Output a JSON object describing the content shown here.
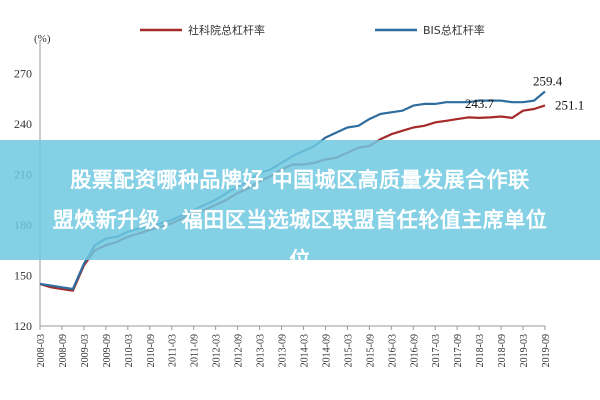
{
  "chart_data": {
    "type": "line",
    "ylabel": "(%)",
    "ylim": [
      120,
      290
    ],
    "yticks": [
      120,
      150,
      180,
      210,
      240,
      270
    ],
    "x": [
      "2008-03",
      "2008-06",
      "2008-09",
      "2008-12",
      "2009-03",
      "2009-06",
      "2009-09",
      "2009-12",
      "2010-03",
      "2010-06",
      "2010-09",
      "2010-12",
      "2011-03",
      "2011-06",
      "2011-09",
      "2011-12",
      "2012-03",
      "2012-06",
      "2012-09",
      "2012-12",
      "2013-03",
      "2013-06",
      "2013-09",
      "2013-12",
      "2014-03",
      "2014-06",
      "2014-09",
      "2014-12",
      "2015-03",
      "2015-06",
      "2015-09",
      "2015-12",
      "2016-03",
      "2016-06",
      "2016-09",
      "2016-12",
      "2017-03",
      "2017-06",
      "2017-09",
      "2017-12",
      "2018-03",
      "2018-06",
      "2018-09",
      "2018-12",
      "2019-03",
      "2019-06",
      "2019-09"
    ],
    "xtick_labels": [
      "2008-03",
      "2008-09",
      "2009-03",
      "2009-09",
      "2010-03",
      "2010-09",
      "2011-03",
      "2011-09",
      "2012-03",
      "2012-09",
      "2013-03",
      "2013-09",
      "2014-03",
      "2014-09",
      "2015-03",
      "2015-09",
      "2016-03",
      "2016-09",
      "2017-03",
      "2017-09",
      "2018-03",
      "2018-09",
      "2019-03",
      "2019-09"
    ],
    "series": [
      {
        "name": "社科院总杠杆率",
        "color": "#a52a2a",
        "values": [
          145,
          143,
          142,
          141,
          156,
          165,
          168,
          170,
          173,
          175,
          177,
          179,
          181,
          184,
          187,
          189,
          192,
          195,
          199,
          202,
          206,
          209,
          213,
          216,
          216,
          217,
          219,
          220,
          223,
          226,
          227,
          231,
          234,
          236,
          238,
          239,
          241,
          242,
          243,
          244,
          243.7,
          244,
          244.5,
          243.7,
          248,
          249,
          251.1
        ]
      },
      {
        "name": "BIS总杠杆率",
        "color": "#2e6d9e",
        "values": [
          145,
          144,
          143,
          142,
          157,
          168,
          172,
          173,
          176,
          178,
          179,
          181,
          183,
          186,
          189,
          192,
          195,
          199,
          203,
          206,
          211,
          213,
          217,
          221,
          224,
          227,
          232,
          235,
          238,
          239,
          243,
          246,
          247,
          248,
          251,
          252,
          252,
          253,
          253,
          253,
          254,
          254,
          254,
          253,
          253,
          254,
          259.4
        ]
      }
    ],
    "annotations": [
      {
        "text": "259.4",
        "x": "2019-09",
        "y": 259.4
      },
      {
        "text": "251.1",
        "x": "2019-09",
        "y": 251.1
      },
      {
        "text": "243.7",
        "x": "2018-12",
        "y": 243.7
      }
    ],
    "legend": "top",
    "grid": false
  },
  "banner": {
    "line1": "股票配资哪种品牌好 中国城区高质量发展合作联",
    "line2": "盟焕新升级，福田区当选城区联盟首任轮值主席单位",
    "line3": "位"
  }
}
